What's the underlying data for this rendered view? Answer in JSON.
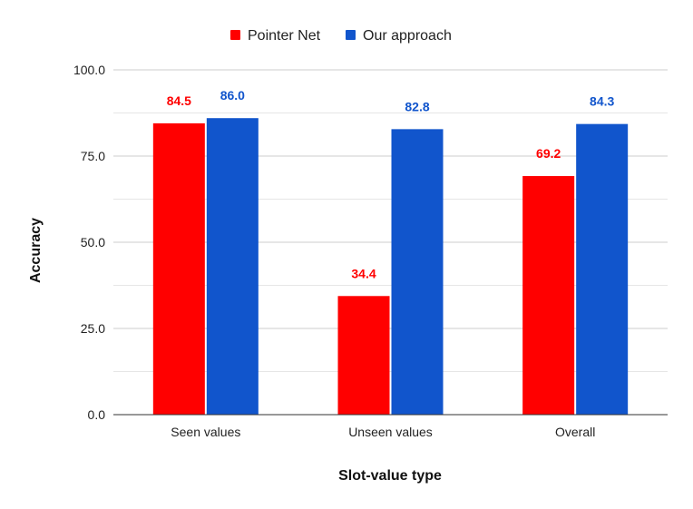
{
  "chart_data": {
    "type": "bar",
    "categories": [
      "Seen values",
      "Unseen values",
      "Overall"
    ],
    "series": [
      {
        "name": "Pointer Net",
        "color": "#ff0000",
        "values": [
          84.5,
          34.4,
          69.2
        ],
        "labels": [
          "84.5",
          "34.4",
          "69.2"
        ]
      },
      {
        "name": "Our approach",
        "color": "#1155cc",
        "values": [
          86.0,
          82.8,
          84.3
        ],
        "labels": [
          "86.0",
          "82.8",
          "84.3"
        ]
      }
    ],
    "title": "",
    "xlabel": "Slot-value type",
    "ylabel": "Accuracy",
    "ylim": [
      0,
      100
    ],
    "yticks": [
      0,
      25,
      50,
      75,
      100
    ],
    "ytick_labels": [
      "0.0",
      "25.0",
      "50.0",
      "75.0",
      "100.0"
    ],
    "grid": true,
    "legend_position": "top-center"
  }
}
